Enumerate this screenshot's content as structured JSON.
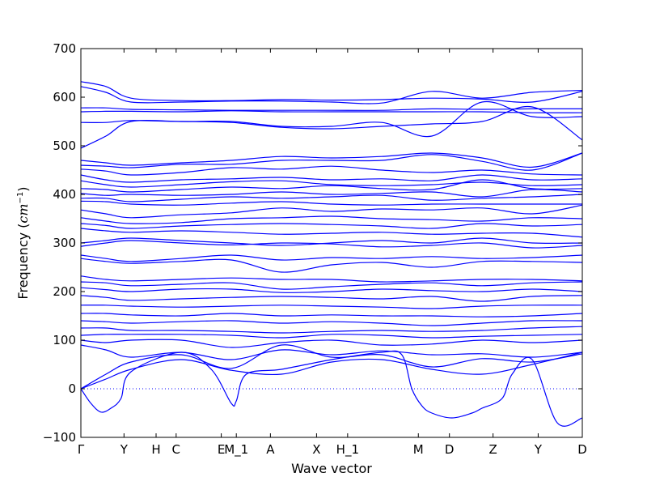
{
  "chart_data": {
    "type": "line",
    "title": "",
    "xlabel": "Wave vector",
    "ylabel_text": "Frequency (",
    "ylabel_unit_base": "cm",
    "ylabel_unit_exp": "−1",
    "ylabel_close": ")",
    "ylim": [
      -100,
      700
    ],
    "yticks": [
      -100,
      0,
      100,
      200,
      300,
      400,
      500,
      600,
      700
    ],
    "ytick_labels": [
      "−100",
      "0",
      "100",
      "200",
      "300",
      "400",
      "500",
      "600",
      "700"
    ],
    "kpath": [
      {
        "label": "Γ",
        "pos": 0.0
      },
      {
        "label": "Y",
        "pos": 0.086
      },
      {
        "label": "H",
        "pos": 0.15
      },
      {
        "label": "C",
        "pos": 0.19
      },
      {
        "label": "E",
        "pos": 0.28
      },
      {
        "label": "M_1",
        "pos": 0.31
      },
      {
        "label": "A",
        "pos": 0.378
      },
      {
        "label": "X",
        "pos": 0.47
      },
      {
        "label": "H_1",
        "pos": 0.532
      },
      {
        "label": "M",
        "pos": 0.673
      },
      {
        "label": "D",
        "pos": 0.735
      },
      {
        "label": "Z",
        "pos": 0.822
      },
      {
        "label": "Y",
        "pos": 0.912
      },
      {
        "label": "D",
        "pos": 1.0
      }
    ],
    "zero_line": {
      "value": 0,
      "style": "dotted",
      "color": "#0000ff"
    },
    "line_color": "#0000ff",
    "grid": false,
    "legend": "none",
    "series": [
      {
        "x": [
          0,
          0.05,
          0.1,
          0.2,
          0.3,
          0.4,
          0.5,
          0.6,
          0.7,
          0.8,
          0.9,
          1.0
        ],
        "y": [
          632,
          622,
          598,
          593,
          593,
          595,
          594,
          595,
          598,
          596,
          590,
          612
        ]
      },
      {
        "x": [
          0,
          0.05,
          0.1,
          0.2,
          0.3,
          0.4,
          0.5,
          0.6,
          0.7,
          0.8,
          0.9,
          1.0
        ],
        "y": [
          622,
          610,
          590,
          590,
          592,
          592,
          590,
          588,
          612,
          598,
          610,
          614
        ]
      },
      {
        "x": [
          0,
          0.05,
          0.1,
          0.2,
          0.3,
          0.4,
          0.5,
          0.6,
          0.7,
          0.8,
          0.9,
          1.0
        ],
        "y": [
          578,
          578,
          575,
          574,
          573,
          573,
          573,
          573,
          576,
          575,
          576,
          576
        ]
      },
      {
        "x": [
          0,
          0.05,
          0.1,
          0.2,
          0.3,
          0.4,
          0.5,
          0.6,
          0.7,
          0.8,
          0.9,
          1.0
        ],
        "y": [
          570,
          571,
          571,
          570,
          572,
          570,
          570,
          570,
          570,
          570,
          568,
          568
        ]
      },
      {
        "x": [
          0,
          0.05,
          0.1,
          0.2,
          0.3,
          0.4,
          0.5,
          0.6,
          0.7,
          0.8,
          0.9,
          1.0
        ],
        "y": [
          548,
          548,
          552,
          550,
          550,
          540,
          540,
          548,
          520,
          590,
          560,
          560
        ]
      },
      {
        "x": [
          0,
          0.05,
          0.1,
          0.2,
          0.3,
          0.4,
          0.5,
          0.6,
          0.7,
          0.8,
          0.9,
          1.0
        ],
        "y": [
          495,
          520,
          550,
          550,
          548,
          538,
          535,
          540,
          545,
          550,
          580,
          512
        ]
      },
      {
        "x": [
          0,
          0.05,
          0.1,
          0.2,
          0.3,
          0.4,
          0.5,
          0.6,
          0.7,
          0.8,
          0.9,
          1.0
        ],
        "y": [
          470,
          465,
          460,
          465,
          470,
          478,
          475,
          478,
          485,
          475,
          456,
          485
        ]
      },
      {
        "x": [
          0,
          0.05,
          0.1,
          0.2,
          0.3,
          0.4,
          0.5,
          0.6,
          0.7,
          0.8,
          0.9,
          1.0
        ],
        "y": [
          460,
          458,
          455,
          462,
          462,
          470,
          470,
          470,
          482,
          468,
          450,
          485
        ]
      },
      {
        "x": [
          0,
          0.05,
          0.1,
          0.2,
          0.3,
          0.4,
          0.5,
          0.6,
          0.7,
          0.8,
          0.9,
          1.0
        ],
        "y": [
          452,
          448,
          440,
          445,
          455,
          452,
          458,
          450,
          445,
          450,
          442,
          440
        ]
      },
      {
        "x": [
          0,
          0.05,
          0.1,
          0.2,
          0.3,
          0.4,
          0.5,
          0.6,
          0.7,
          0.8,
          0.9,
          1.0
        ],
        "y": [
          440,
          430,
          425,
          430,
          432,
          435,
          430,
          432,
          428,
          440,
          430,
          432
        ]
      },
      {
        "x": [
          0,
          0.05,
          0.1,
          0.2,
          0.3,
          0.4,
          0.5,
          0.6,
          0.7,
          0.8,
          0.9,
          1.0
        ],
        "y": [
          428,
          420,
          415,
          420,
          426,
          428,
          420,
          418,
          420,
          425,
          418,
          420
        ]
      },
      {
        "x": [
          0,
          0.05,
          0.1,
          0.2,
          0.3,
          0.4,
          0.5,
          0.6,
          0.7,
          0.8,
          0.9,
          1.0
        ],
        "y": [
          412,
          410,
          405,
          410,
          415,
          412,
          418,
          412,
          410,
          430,
          412,
          412
        ]
      },
      {
        "x": [
          0,
          0.05,
          0.1,
          0.2,
          0.3,
          0.4,
          0.5,
          0.6,
          0.7,
          0.8,
          0.9,
          1.0
        ],
        "y": [
          402,
          398,
          400,
          398,
          400,
          405,
          400,
          402,
          405,
          395,
          410,
          405
        ]
      },
      {
        "x": [
          0,
          0.05,
          0.1,
          0.2,
          0.3,
          0.4,
          0.5,
          0.6,
          0.7,
          0.8,
          0.9,
          1.0
        ],
        "y": [
          392,
          392,
          385,
          390,
          395,
          392,
          395,
          398,
          388,
          392,
          395,
          400
        ]
      },
      {
        "x": [
          0,
          0.05,
          0.1,
          0.2,
          0.3,
          0.4,
          0.5,
          0.6,
          0.7,
          0.8,
          0.9,
          1.0
        ],
        "y": [
          386,
          385,
          380,
          378,
          382,
          385,
          380,
          378,
          380,
          380,
          380,
          380
        ]
      },
      {
        "x": [
          0,
          0.05,
          0.1,
          0.2,
          0.3,
          0.4,
          0.5,
          0.6,
          0.7,
          0.8,
          0.9,
          1.0
        ],
        "y": [
          368,
          360,
          352,
          358,
          362,
          372,
          365,
          370,
          368,
          372,
          360,
          378
        ]
      },
      {
        "x": [
          0,
          0.05,
          0.1,
          0.2,
          0.3,
          0.4,
          0.5,
          0.6,
          0.7,
          0.8,
          0.9,
          1.0
        ],
        "y": [
          352,
          345,
          340,
          342,
          350,
          352,
          355,
          350,
          348,
          345,
          352,
          350
        ]
      },
      {
        "x": [
          0,
          0.05,
          0.1,
          0.2,
          0.3,
          0.4,
          0.5,
          0.6,
          0.7,
          0.8,
          0.9,
          1.0
        ],
        "y": [
          340,
          336,
          330,
          335,
          338,
          340,
          338,
          335,
          330,
          340,
          335,
          338
        ]
      },
      {
        "x": [
          0,
          0.05,
          0.1,
          0.2,
          0.3,
          0.4,
          0.5,
          0.6,
          0.7,
          0.8,
          0.9,
          1.0
        ],
        "y": [
          330,
          325,
          322,
          325,
          322,
          318,
          320,
          322,
          318,
          320,
          320,
          312
        ]
      },
      {
        "x": [
          0,
          0.05,
          0.1,
          0.2,
          0.3,
          0.4,
          0.5,
          0.6,
          0.7,
          0.8,
          0.9,
          1.0
        ],
        "y": [
          300,
          305,
          310,
          305,
          300,
          295,
          300,
          305,
          300,
          310,
          300,
          300
        ]
      },
      {
        "x": [
          0,
          0.05,
          0.1,
          0.2,
          0.3,
          0.4,
          0.5,
          0.6,
          0.7,
          0.8,
          0.9,
          1.0
        ],
        "y": [
          293,
          300,
          305,
          300,
          296,
          300,
          298,
          292,
          295,
          300,
          290,
          295
        ]
      },
      {
        "x": [
          0,
          0.05,
          0.1,
          0.2,
          0.3,
          0.4,
          0.5,
          0.6,
          0.7,
          0.8,
          0.9,
          1.0
        ],
        "y": [
          275,
          268,
          262,
          268,
          275,
          265,
          270,
          268,
          272,
          268,
          270,
          275
        ]
      },
      {
        "x": [
          0,
          0.05,
          0.1,
          0.2,
          0.3,
          0.4,
          0.5,
          0.6,
          0.7,
          0.8,
          0.9,
          1.0
        ],
        "y": [
          268,
          262,
          258,
          262,
          265,
          240,
          255,
          260,
          250,
          262,
          262,
          260
        ]
      },
      {
        "x": [
          0,
          0.05,
          0.1,
          0.2,
          0.3,
          0.4,
          0.5,
          0.6,
          0.7,
          0.8,
          0.9,
          1.0
        ],
        "y": [
          232,
          225,
          222,
          225,
          228,
          225,
          225,
          220,
          222,
          225,
          225,
          222
        ]
      },
      {
        "x": [
          0,
          0.05,
          0.1,
          0.2,
          0.3,
          0.4,
          0.5,
          0.6,
          0.7,
          0.8,
          0.9,
          1.0
        ],
        "y": [
          220,
          218,
          212,
          215,
          218,
          205,
          210,
          215,
          218,
          212,
          218,
          220
        ]
      },
      {
        "x": [
          0,
          0.05,
          0.1,
          0.2,
          0.3,
          0.4,
          0.5,
          0.6,
          0.7,
          0.8,
          0.9,
          1.0
        ],
        "y": [
          208,
          204,
          200,
          205,
          205,
          198,
          200,
          205,
          202,
          200,
          205,
          200
        ]
      },
      {
        "x": [
          0,
          0.05,
          0.1,
          0.2,
          0.3,
          0.4,
          0.5,
          0.6,
          0.7,
          0.8,
          0.9,
          1.0
        ],
        "y": [
          192,
          188,
          182,
          185,
          188,
          190,
          188,
          185,
          190,
          180,
          190,
          192
        ]
      },
      {
        "x": [
          0,
          0.05,
          0.1,
          0.2,
          0.3,
          0.4,
          0.5,
          0.6,
          0.7,
          0.8,
          0.9,
          1.0
        ],
        "y": [
          172,
          172,
          170,
          168,
          170,
          172,
          170,
          168,
          165,
          170,
          172,
          172
        ]
      },
      {
        "x": [
          0,
          0.05,
          0.1,
          0.2,
          0.3,
          0.4,
          0.5,
          0.6,
          0.7,
          0.8,
          0.9,
          1.0
        ],
        "y": [
          155,
          155,
          152,
          150,
          155,
          150,
          152,
          150,
          150,
          148,
          150,
          155
        ]
      },
      {
        "x": [
          0,
          0.05,
          0.1,
          0.2,
          0.3,
          0.4,
          0.5,
          0.6,
          0.7,
          0.8,
          0.9,
          1.0
        ],
        "y": [
          140,
          138,
          135,
          138,
          140,
          135,
          138,
          135,
          130,
          135,
          140,
          140
        ]
      },
      {
        "x": [
          0,
          0.05,
          0.1,
          0.2,
          0.3,
          0.4,
          0.5,
          0.6,
          0.7,
          0.8,
          0.9,
          1.0
        ],
        "y": [
          125,
          125,
          120,
          120,
          118,
          115,
          118,
          120,
          118,
          120,
          125,
          128
        ]
      },
      {
        "x": [
          0,
          0.05,
          0.1,
          0.2,
          0.3,
          0.4,
          0.5,
          0.6,
          0.7,
          0.8,
          0.9,
          1.0
        ],
        "y": [
          110,
          112,
          112,
          112,
          110,
          105,
          112,
          110,
          105,
          108,
          110,
          112
        ]
      },
      {
        "x": [
          0,
          0.05,
          0.1,
          0.2,
          0.3,
          0.4,
          0.5,
          0.6,
          0.7,
          0.8,
          0.9,
          1.0
        ],
        "y": [
          100,
          95,
          100,
          100,
          85,
          95,
          100,
          90,
          92,
          100,
          95,
          100
        ]
      },
      {
        "x": [
          0,
          0.05,
          0.1,
          0.2,
          0.3,
          0.4,
          0.5,
          0.6,
          0.7,
          0.8,
          0.9,
          1.0
        ],
        "y": [
          90,
          80,
          65,
          75,
          60,
          80,
          70,
          78,
          70,
          72,
          65,
          75
        ]
      },
      {
        "x": [
          0,
          0.05,
          0.1,
          0.2,
          0.3,
          0.4,
          0.5,
          0.6,
          0.7,
          0.8,
          0.9,
          1.0
        ],
        "y": [
          0,
          30,
          55,
          70,
          42,
          90,
          65,
          70,
          45,
          62,
          55,
          72
        ]
      },
      {
        "x": [
          0,
          0.05,
          0.1,
          0.2,
          0.3,
          0.4,
          0.5,
          0.6,
          0.7,
          0.8,
          0.9,
          1.0
        ],
        "y": [
          0,
          20,
          40,
          60,
          38,
          30,
          55,
          60,
          40,
          30,
          50,
          75
        ]
      },
      {
        "x": [
          0,
          0.02,
          0.04,
          0.06,
          0.08,
          0.1,
          0.2,
          0.26,
          0.3,
          0.31,
          0.33,
          0.4,
          0.5,
          0.6,
          0.64,
          0.66,
          0.68,
          0.7,
          0.74,
          0.78,
          0.8,
          0.84,
          0.86,
          0.9,
          0.95,
          1.0
        ],
        "y": [
          0,
          -30,
          -48,
          -40,
          -20,
          35,
          75,
          40,
          -30,
          -25,
          30,
          40,
          60,
          75,
          70,
          0,
          -35,
          -50,
          -60,
          -50,
          -40,
          -20,
          30,
          60,
          -70,
          -60
        ]
      }
    ]
  }
}
